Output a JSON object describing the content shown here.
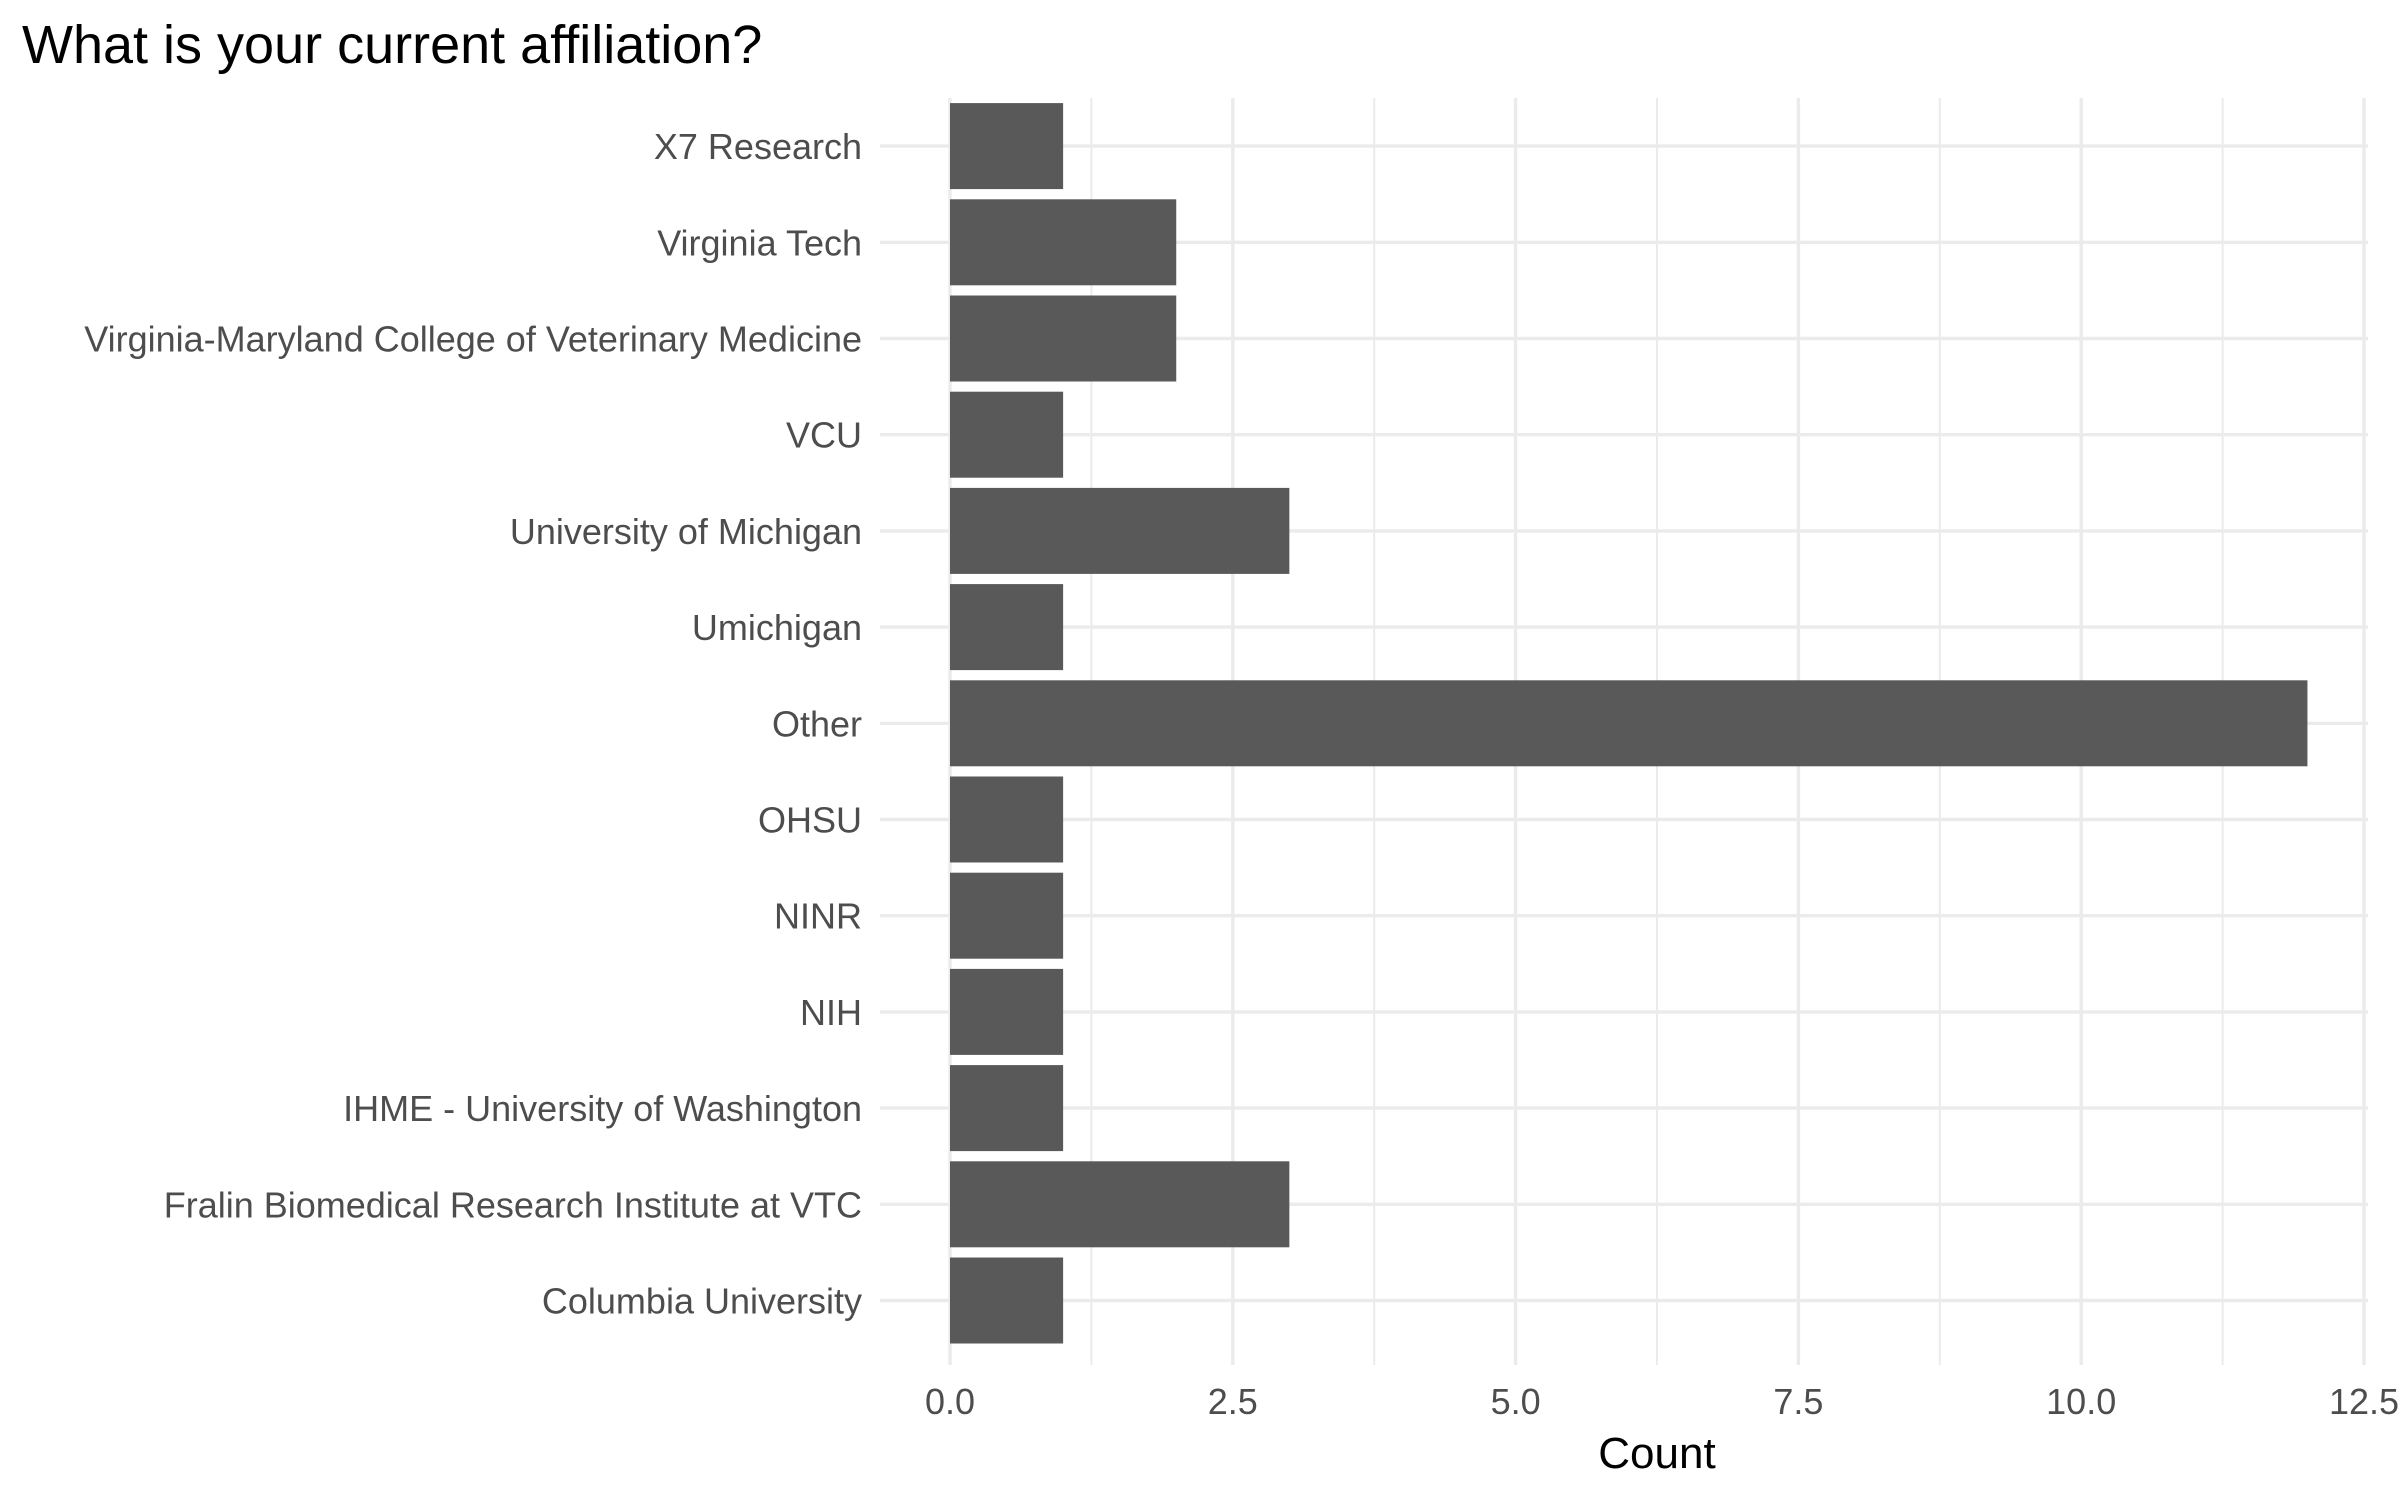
{
  "chart_data": {
    "type": "bar",
    "orientation": "horizontal",
    "title": "What is your current affiliation?",
    "xlabel": "Count",
    "ylabel": "",
    "categories": [
      "X7 Research",
      "Virginia Tech",
      "Virginia-Maryland College of Veterinary Medicine",
      "VCU",
      "University of Michigan",
      "Umichigan",
      "Other",
      "OHSU",
      "NINR",
      "NIH",
      "IHME - University of Washington",
      "Fralin Biomedical Research Institute at VTC",
      "Columbia University"
    ],
    "values": [
      1,
      2,
      2,
      1,
      3,
      1,
      12,
      1,
      1,
      1,
      1,
      3,
      1
    ],
    "xlim": [
      0,
      12.5
    ],
    "xticks": [
      0,
      2.5,
      5,
      7.5,
      10,
      12.5
    ],
    "xtick_labels": [
      "0.0",
      "2.5",
      "5.0",
      "7.5",
      "10.0",
      "12.5"
    ],
    "grid": true,
    "legend": "none",
    "bar_color": "#595959",
    "grid_color": "#ebebeb"
  }
}
